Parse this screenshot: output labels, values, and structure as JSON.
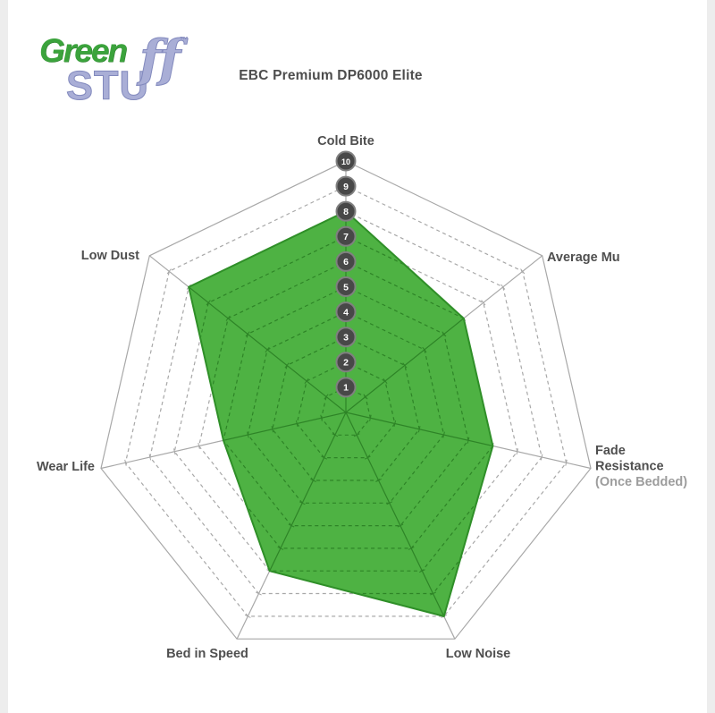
{
  "page": {
    "background": "#ffffff",
    "edge_strip_color": "#ededed"
  },
  "logo": {
    "word1": "Green",
    "word2_main": "STU",
    "word2_tall": "ff",
    "tm": "™",
    "green_color": "#3ba33c",
    "purple_color": "#a9aed6"
  },
  "header": {
    "title": "EBC Premium DP6000 Elite"
  },
  "chart_data": {
    "type": "radar",
    "title": "EBC Premium DP6000 Elite",
    "categories": [
      "Cold Bite",
      "Average Mu",
      "Fade Resistance (Once Bedded)",
      "Low Noise",
      "Bed in Speed",
      "Wear Life",
      "Low Dust"
    ],
    "values": [
      8,
      6,
      6,
      9,
      7,
      5,
      8
    ],
    "axis_labels_lines": [
      [
        "Cold Bite"
      ],
      [
        "Average Mu"
      ],
      [
        "Fade",
        "Resistance",
        "(Once Bedded)"
      ],
      [
        "Low Noise"
      ],
      [
        "Bed in Speed"
      ],
      [
        "Wear Life"
      ],
      [
        "Low Dust"
      ]
    ],
    "scale_min": 1,
    "scale_max": 10,
    "scale_ticks": [
      1,
      2,
      3,
      4,
      5,
      6,
      7,
      8,
      9,
      10
    ],
    "range": [
      0,
      10
    ],
    "grid": "dashed-concentric-heptagons",
    "legend": "none",
    "colors": {
      "fill": "#4eb243",
      "stroke": "#2f8f28",
      "grid": "#a8a8a8",
      "grid_inside": "#2e8427",
      "badge": "#484848",
      "badge_ring": "#808080",
      "badge_text": "#ffffff",
      "label": "#4f4f4f",
      "sublabel": "#9d9d9d"
    }
  }
}
